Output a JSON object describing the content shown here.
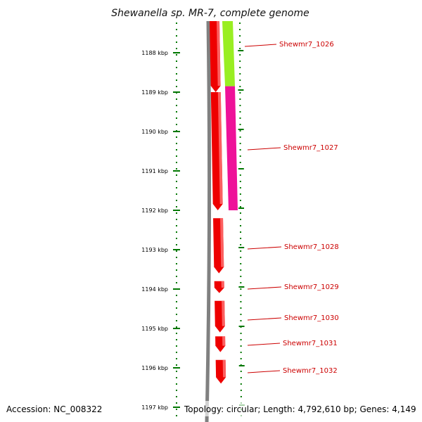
{
  "title": "Shewanella sp. MR-7, complete genome",
  "footer": {
    "accession": "Accession: NC_008322",
    "topology": "Topology: circular; Length: 4,792,610 bp; Genes: 4,149"
  },
  "axis": {
    "unit": "kbp",
    "ticks": [
      {
        "value": 1188,
        "label": "1188 kbp"
      },
      {
        "value": 1189,
        "label": "1189 kbp"
      },
      {
        "value": 1190,
        "label": "1190 kbp"
      },
      {
        "value": 1191,
        "label": "1191 kbp"
      },
      {
        "value": 1192,
        "label": "1192 kbp"
      },
      {
        "value": 1193,
        "label": "1193 kbp"
      },
      {
        "value": 1194,
        "label": "1194 kbp"
      },
      {
        "value": 1195,
        "label": "1195 kbp"
      },
      {
        "value": 1196,
        "label": "1196 kbp"
      },
      {
        "value": 1197,
        "label": "1197 kbp"
      }
    ]
  },
  "genes": [
    {
      "name": "Shewmr7_1026",
      "start": 1187.2,
      "end": 1189.0
    },
    {
      "name": "Shewmr7_1027",
      "start": 1189.0,
      "end": 1192.0
    },
    {
      "name": "Shewmr7_1028",
      "start": 1192.2,
      "end": 1193.6
    },
    {
      "name": "Shewmr7_1029",
      "start": 1193.8,
      "end": 1194.1
    },
    {
      "name": "Shewmr7_1030",
      "start": 1194.3,
      "end": 1195.1
    },
    {
      "name": "Shewmr7_1031",
      "start": 1195.2,
      "end": 1195.6
    },
    {
      "name": "Shewmr7_1032",
      "start": 1195.8,
      "end": 1196.4
    }
  ],
  "colors": {
    "cds": "#ee0000",
    "cds_highlight": "#ff7777",
    "ring_gray": "#808080",
    "tick_green": "#007700",
    "label_red": "#cc0000",
    "feature_lime": "#99ee22",
    "feature_magenta": "#ee1199"
  }
}
